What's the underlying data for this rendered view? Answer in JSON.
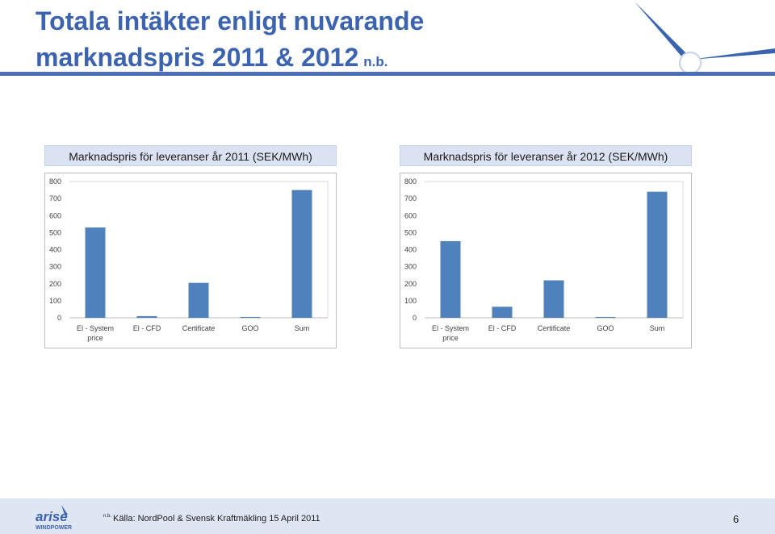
{
  "slide": {
    "title_line1": "Totala intäkter enligt nuvarande",
    "title_line2": "marknadspris 2011 & 2012",
    "title_suffix": "n.b.",
    "source_prefix": "n.b.",
    "source": "Källa: NordPool & Svensk Kraftmäkling 15 April 2011",
    "page_number": "6",
    "logo_text_line1": "arise",
    "logo_text_line2": "WINDPOWER"
  },
  "colors": {
    "accent": "#3b63b0",
    "bar": "#4f81bd",
    "footer": "#dfe6f3"
  },
  "chart_data": [
    {
      "type": "bar",
      "title": "Marknadspris för leveranser år 2011 (SEK/MWh)",
      "categories": [
        "El - System price",
        "El - CFD",
        "Certificate",
        "GOO",
        "Sum"
      ],
      "category_lines": [
        [
          "El - System",
          "price"
        ],
        [
          "El - CFD"
        ],
        [
          "Certificate"
        ],
        [
          "GOO"
        ],
        [
          "Sum"
        ]
      ],
      "values": [
        530,
        10,
        205,
        5,
        750
      ],
      "ylim": [
        0,
        800
      ],
      "yticks": [
        "0",
        "100",
        "200",
        "300",
        "400",
        "500",
        "600",
        "700",
        "800"
      ],
      "grid": false,
      "legend": "none"
    },
    {
      "type": "bar",
      "title": "Marknadspris för leveranser år 2012 (SEK/MWh)",
      "categories": [
        "El - System price",
        "El - CFD",
        "Certificate",
        "GOO",
        "Sum"
      ],
      "category_lines": [
        [
          "El - System",
          "price"
        ],
        [
          "El - CFD"
        ],
        [
          "Certificate"
        ],
        [
          "GOO"
        ],
        [
          "Sum"
        ]
      ],
      "values": [
        450,
        65,
        220,
        5,
        740
      ],
      "ylim": [
        0,
        800
      ],
      "yticks": [
        "0",
        "100",
        "200",
        "300",
        "400",
        "500",
        "600",
        "700",
        "800"
      ],
      "grid": false,
      "legend": "none"
    }
  ]
}
